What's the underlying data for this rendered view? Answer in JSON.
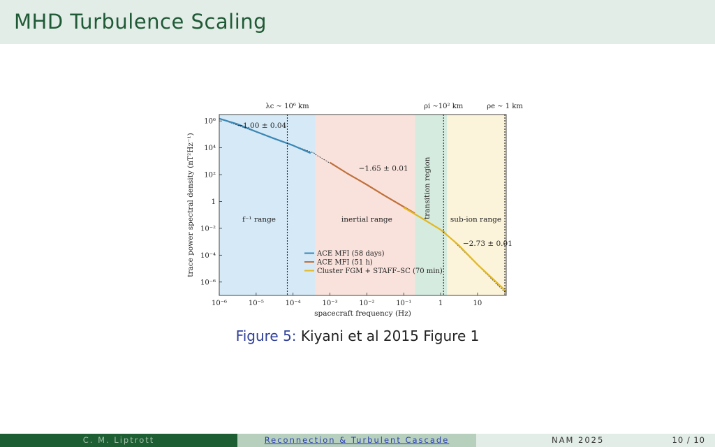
{
  "header": {
    "title": "MHD Turbulence Scaling"
  },
  "caption": {
    "label": "Figure 5:",
    "text": "Kiyani et al 2015 Figure 1"
  },
  "footer": {
    "author": "C. M. Liptrott",
    "talk_title": "Reconnection & Turbulent Cascade",
    "conference": "NAM 2025",
    "page": "10 / 10"
  },
  "colors": {
    "header_bg": "#e3ede7",
    "title": "#1f5a36",
    "ace_58d": "#3a86b4",
    "ace_51h": "#c0703a",
    "cluster": "#e3b81f"
  },
  "chart_data": {
    "type": "line",
    "xlabel": "spacecraft frequency (Hz)",
    "ylabel": "trace power spectral density (nT²Hz⁻¹)",
    "x_scale": "log",
    "y_scale": "log",
    "xlim": [
      1e-06,
      60
    ],
    "ylim": [
      1e-07,
      3000000.0
    ],
    "xticks": [
      {
        "v": 1e-06,
        "label": "10⁻⁶"
      },
      {
        "v": 1e-05,
        "label": "10⁻⁵"
      },
      {
        "v": 0.0001,
        "label": "10⁻⁴"
      },
      {
        "v": 0.001,
        "label": "10⁻³"
      },
      {
        "v": 0.01,
        "label": "10⁻²"
      },
      {
        "v": 0.1,
        "label": "10⁻¹"
      },
      {
        "v": 1,
        "label": "1"
      },
      {
        "v": 10,
        "label": "10"
      }
    ],
    "yticks": [
      {
        "v": 1000000.0,
        "label": "10⁶"
      },
      {
        "v": 10000.0,
        "label": "10⁴"
      },
      {
        "v": 100.0,
        "label": "10²"
      },
      {
        "v": 1,
        "label": "1"
      },
      {
        "v": 0.01,
        "label": "10⁻²"
      },
      {
        "v": 0.0001,
        "label": "10⁻⁴"
      },
      {
        "v": 1e-06,
        "label": "10⁻⁶"
      }
    ],
    "regions": [
      {
        "x0": 1e-06,
        "x1": 0.0004,
        "color": "#d5e9f6",
        "label": "f⁻¹ range",
        "label_x": 1.2e-05,
        "label_y": 0.03,
        "rotate": false
      },
      {
        "x0": 0.0004,
        "x1": 0.2,
        "color": "#f9e2dc",
        "label": "inertial range",
        "label_x": 0.01,
        "label_y": 0.03,
        "rotate": false
      },
      {
        "x0": 0.2,
        "x1": 1.5,
        "color": "#d6ebdf",
        "label": "transition region",
        "label_x": 0.5,
        "label_y": 10,
        "rotate": true
      },
      {
        "x0": 1.5,
        "x1": 60,
        "color": "#fbf3da",
        "label": "sub-ion range",
        "label_x": 9,
        "label_y": 0.03,
        "rotate": false
      }
    ],
    "vlines": [
      {
        "x": 7e-05,
        "label": "λc ~ 10⁶ km"
      },
      {
        "x": 1.2,
        "label": "ρi ~10² km"
      },
      {
        "x": 55,
        "label": "ρe ~ 1 km"
      }
    ],
    "annotations": [
      {
        "text": "−1.00 ± 0.04",
        "x": 3e-06,
        "y": 300000.0
      },
      {
        "text": "−1.65 ± 0.01",
        "x": 0.006,
        "y": 200
      },
      {
        "text": "−2.73 ± 0.01",
        "x": 4,
        "y": 0.0005
      }
    ],
    "series": [
      {
        "name": "ACE MFI (58 days)",
        "color": "#3a86b4",
        "x": [
          1e-06,
          3e-06,
          1e-05,
          3e-05,
          0.0001,
          0.0003
        ],
        "y": [
          1500000.0,
          600000.0,
          160000.0,
          50000.0,
          15000.0,
          4000.0
        ]
      },
      {
        "name": "ACE MFI (51 h)",
        "color": "#c0703a",
        "x": [
          0.001,
          0.003,
          0.01,
          0.03,
          0.1,
          0.2
        ],
        "y": [
          800,
          120,
          18,
          2.8,
          0.4,
          0.13
        ]
      },
      {
        "name": "Cluster FGM + STAFF–SC (70 min)",
        "color": "#e3b81f",
        "x": [
          0.1,
          0.3,
          1,
          3,
          10,
          30,
          60
        ],
        "y": [
          0.35,
          0.06,
          0.008,
          0.0006,
          2e-05,
          1.2e-06,
          2e-07
        ]
      }
    ],
    "fit_lines": [
      {
        "x": [
          1e-06,
          0.0004
        ],
        "y": [
          1500000.0,
          3750.0
        ]
      },
      {
        "x": [
          0.0004,
          1.2
        ],
        "y": [
          3300.0,
          0.0061
        ]
      },
      {
        "x": [
          1.2,
          60
        ],
        "y": [
          0.0061,
          1.4e-07
        ]
      }
    ]
  }
}
